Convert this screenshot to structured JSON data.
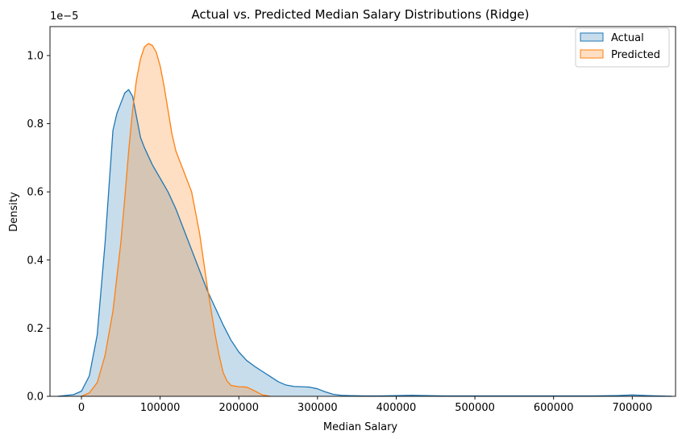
{
  "chart_data": {
    "type": "area",
    "title": "Actual vs. Predicted Median Salary Distributions (Ridge)",
    "xlabel": "Median Salary",
    "ylabel": "Density",
    "y_offset_label": "1e−5",
    "xlim": [
      -40000,
      755000
    ],
    "ylim": [
      0,
      1.085
    ],
    "y_scale_multiplier": 1e-05,
    "x_ticks": [
      0,
      100000,
      200000,
      300000,
      400000,
      500000,
      600000,
      700000
    ],
    "x_tick_labels": [
      "0",
      "100000",
      "200000",
      "300000",
      "400000",
      "500000",
      "600000",
      "700000"
    ],
    "y_ticks": [
      0,
      0.2,
      0.4,
      0.6,
      0.8,
      1.0
    ],
    "y_tick_labels": [
      "0.0",
      "0.2",
      "0.4",
      "0.6",
      "0.8",
      "1.0"
    ],
    "grid": false,
    "legend_position": "top-right",
    "series": [
      {
        "name": "Actual",
        "color": "#1f77b4",
        "fill_opacity": 0.25,
        "x": [
          -30000,
          -10000,
          0,
          10000,
          20000,
          30000,
          40000,
          45000,
          50000,
          55000,
          60000,
          65000,
          70000,
          75000,
          80000,
          90000,
          100000,
          110000,
          120000,
          130000,
          140000,
          150000,
          160000,
          170000,
          180000,
          190000,
          200000,
          210000,
          220000,
          230000,
          240000,
          250000,
          260000,
          270000,
          280000,
          290000,
          300000,
          310000,
          320000,
          330000,
          340000,
          360000,
          380000,
          400000,
          420000,
          440000,
          460000,
          500000,
          550000,
          600000,
          650000,
          680000,
          700000,
          720000,
          750000
        ],
        "y": [
          0.0,
          0.005,
          0.015,
          0.06,
          0.18,
          0.45,
          0.78,
          0.83,
          0.86,
          0.89,
          0.9,
          0.88,
          0.82,
          0.76,
          0.73,
          0.68,
          0.64,
          0.6,
          0.55,
          0.49,
          0.43,
          0.37,
          0.31,
          0.26,
          0.21,
          0.165,
          0.13,
          0.105,
          0.088,
          0.073,
          0.058,
          0.043,
          0.033,
          0.029,
          0.028,
          0.027,
          0.022,
          0.013,
          0.006,
          0.003,
          0.002,
          0.001,
          0.001,
          0.002,
          0.003,
          0.002,
          0.001,
          0.001,
          0.001,
          0.001,
          0.001,
          0.002,
          0.004,
          0.002,
          0.0
        ]
      },
      {
        "name": "Predicted",
        "color": "#ff7f0e",
        "fill_opacity": 0.25,
        "x": [
          0,
          10000,
          20000,
          30000,
          40000,
          50000,
          55000,
          60000,
          65000,
          70000,
          75000,
          80000,
          85000,
          90000,
          95000,
          100000,
          105000,
          110000,
          115000,
          120000,
          125000,
          130000,
          135000,
          140000,
          145000,
          150000,
          155000,
          160000,
          165000,
          170000,
          175000,
          180000,
          185000,
          190000,
          200000,
          210000,
          220000,
          230000,
          240000
        ],
        "y": [
          0.0,
          0.01,
          0.04,
          0.12,
          0.25,
          0.45,
          0.58,
          0.72,
          0.84,
          0.93,
          0.99,
          1.025,
          1.035,
          1.03,
          1.01,
          0.97,
          0.91,
          0.84,
          0.77,
          0.72,
          0.69,
          0.66,
          0.63,
          0.6,
          0.54,
          0.48,
          0.4,
          0.32,
          0.25,
          0.18,
          0.12,
          0.07,
          0.045,
          0.032,
          0.028,
          0.027,
          0.016,
          0.004,
          0.0
        ]
      }
    ]
  }
}
